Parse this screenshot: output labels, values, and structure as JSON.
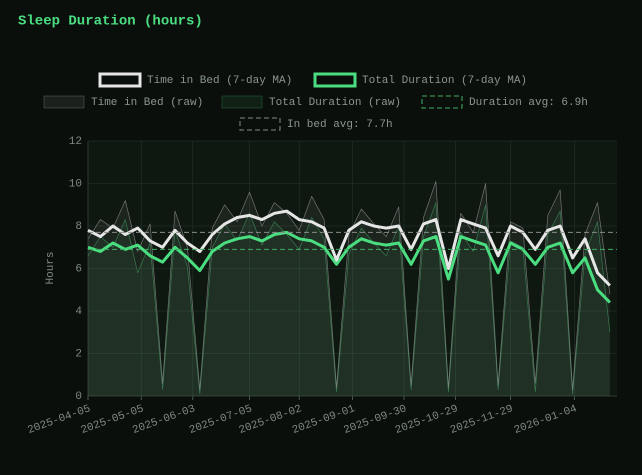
{
  "chart_data": {
    "type": "line",
    "title": "Sleep Duration (hours)",
    "y_label": "Hours",
    "x": [
      "2025-04-05",
      "2025-04-12",
      "2025-04-19",
      "2025-04-26",
      "2025-05-03",
      "2025-05-10",
      "2025-05-17",
      "2025-05-24",
      "2025-05-31",
      "2025-06-07",
      "2025-06-14",
      "2025-06-21",
      "2025-06-28",
      "2025-07-05",
      "2025-07-12",
      "2025-07-19",
      "2025-07-26",
      "2025-08-02",
      "2025-08-09",
      "2025-08-16",
      "2025-08-23",
      "2025-08-30",
      "2025-09-06",
      "2025-09-13",
      "2025-09-20",
      "2025-09-27",
      "2025-10-04",
      "2025-10-11",
      "2025-10-18",
      "2025-10-25",
      "2025-11-01",
      "2025-11-08",
      "2025-11-15",
      "2025-11-22",
      "2025-11-29",
      "2025-12-06",
      "2025-12-13",
      "2025-12-20",
      "2025-12-27",
      "2026-01-03",
      "2026-01-10",
      "2026-01-17",
      "2026-01-24"
    ],
    "series": [
      {
        "name": "Time in Bed (7-day MA)",
        "color": "#e6e6e6",
        "linewidth": 3,
        "fill": false,
        "values": [
          7.8,
          7.5,
          8.0,
          7.6,
          7.9,
          7.3,
          7.0,
          7.8,
          7.2,
          6.8,
          7.6,
          8.1,
          8.4,
          8.5,
          8.3,
          8.6,
          8.7,
          8.3,
          8.2,
          7.9,
          6.4,
          7.8,
          8.2,
          8.0,
          7.9,
          8.0,
          6.9,
          8.1,
          8.3,
          6.0,
          8.3,
          8.1,
          7.9,
          6.6,
          8.0,
          7.7,
          6.9,
          7.8,
          8.0,
          6.5,
          7.4,
          5.8,
          5.2
        ]
      },
      {
        "name": "Total Duration (7-day MA)",
        "color": "#4ade80",
        "linewidth": 3,
        "fill": false,
        "values": [
          7.0,
          6.8,
          7.2,
          6.9,
          7.1,
          6.6,
          6.3,
          7.0,
          6.5,
          5.9,
          6.8,
          7.2,
          7.4,
          7.5,
          7.3,
          7.6,
          7.7,
          7.4,
          7.3,
          7.0,
          6.2,
          7.0,
          7.4,
          7.2,
          7.1,
          7.2,
          6.2,
          7.3,
          7.5,
          5.5,
          7.5,
          7.3,
          7.1,
          5.8,
          7.2,
          6.9,
          6.2,
          7.0,
          7.2,
          5.8,
          6.5,
          5.0,
          4.4
        ]
      },
      {
        "name": "Time in Bed (raw)",
        "color": "#9a9a9a",
        "linewidth": 0.7,
        "fill": true,
        "values": [
          7.4,
          8.3,
          7.9,
          9.2,
          6.8,
          8.1,
          0.6,
          8.7,
          7.0,
          0.3,
          7.9,
          9.0,
          8.2,
          9.6,
          8.0,
          9.1,
          8.6,
          7.8,
          9.4,
          8.3,
          0.4,
          7.6,
          8.8,
          8.1,
          7.5,
          8.9,
          0.5,
          8.4,
          10.1,
          0.4,
          8.6,
          7.7,
          10.0,
          0.5,
          8.2,
          7.9,
          0.6,
          8.5,
          9.7,
          0.3,
          7.6,
          9.1,
          4.8
        ]
      },
      {
        "name": "Total Duration (raw)",
        "color": "#3a9a5a",
        "linewidth": 0.7,
        "fill": true,
        "values": [
          6.6,
          7.5,
          7.0,
          8.3,
          5.8,
          7.2,
          0.3,
          7.8,
          6.1,
          0.1,
          7.0,
          8.1,
          7.3,
          8.6,
          7.1,
          8.2,
          7.6,
          6.9,
          8.4,
          7.4,
          0.2,
          6.7,
          7.9,
          7.2,
          6.6,
          8.0,
          0.3,
          7.5,
          9.1,
          0.2,
          7.7,
          6.8,
          9.0,
          0.3,
          7.3,
          7.0,
          0.2,
          7.6,
          8.7,
          0.1,
          6.7,
          8.2,
          3.0
        ]
      }
    ],
    "hlines": [
      {
        "label": "Duration avg: 6.9h",
        "value": 6.9,
        "color": "#3fae62"
      },
      {
        "label": "In bed avg: 7.7h",
        "value": 7.7,
        "color": "#8a8a8a"
      }
    ],
    "xlim": [
      "2025-04-05",
      "2026-01-28"
    ],
    "xticks": [
      "2025-04-05",
      "2025-05-05",
      "2025-06-03",
      "2025-07-05",
      "2025-08-02",
      "2025-09-01",
      "2025-09-30",
      "2025-10-29",
      "2025-11-29",
      "2026-01-04"
    ],
    "ylim": [
      0,
      12
    ],
    "yticks": [
      0,
      2,
      4,
      6,
      8,
      10,
      12
    ],
    "grid": true
  }
}
